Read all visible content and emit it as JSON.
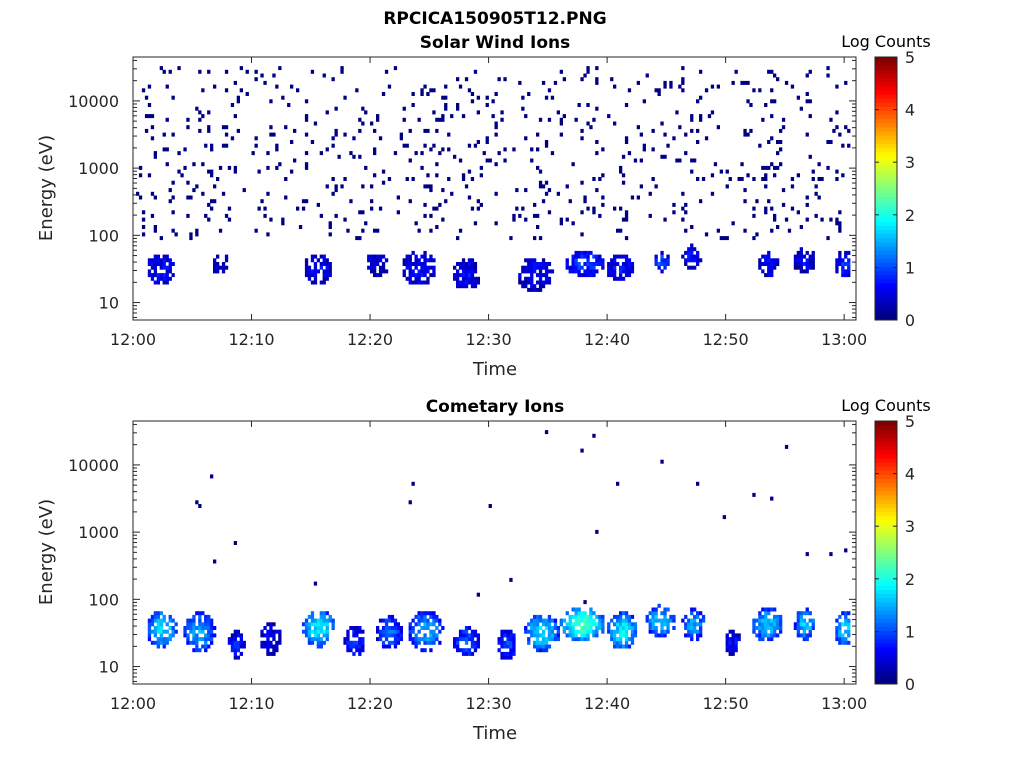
{
  "figure": {
    "title": "RPCICA150905T12.PNG"
  },
  "colormap": {
    "name": "jet",
    "stops": [
      "#00007f",
      "#0000ff",
      "#007fff",
      "#00ffff",
      "#7fff7f",
      "#ffff00",
      "#ff7f00",
      "#ff0000",
      "#7f0000"
    ]
  },
  "chart_data": [
    {
      "type": "heatmap",
      "title": "Solar Wind Ions",
      "xlabel": "Time",
      "ylabel": "Energy (eV)",
      "x_ticks": [
        "12:00",
        "12:10",
        "12:20",
        "12:30",
        "12:40",
        "12:50",
        "13:00"
      ],
      "xlim_minutes": [
        0,
        61
      ],
      "y_scale": "log",
      "ylim": [
        5.5,
        45000
      ],
      "y_ticks": [
        10,
        100,
        1000,
        10000
      ],
      "y_tick_labels": [
        "10",
        "100",
        "1000",
        "10000"
      ],
      "colorbar": {
        "label": "Log Counts",
        "range": [
          0,
          5
        ],
        "ticks": [
          "0",
          "1",
          "2",
          "3",
          "4",
          "5"
        ]
      },
      "bin_minutes": 0.25,
      "bands": [
        {
          "t": 2.2,
          "e": 30,
          "w": 1.2,
          "h": 1.7,
          "lvl": 0.6
        },
        {
          "t": 7.3,
          "e": 35,
          "w": 0.8,
          "h": 1.4,
          "lvl": 0.3
        },
        {
          "t": 15.5,
          "e": 30,
          "w": 1.2,
          "h": 1.7,
          "lvl": 0.6
        },
        {
          "t": 20.5,
          "e": 35,
          "w": 1.0,
          "h": 1.5,
          "lvl": 0.4
        },
        {
          "t": 24.0,
          "e": 30,
          "w": 1.5,
          "h": 1.8,
          "lvl": 0.6
        },
        {
          "t": 28.0,
          "e": 25,
          "w": 1.2,
          "h": 1.7,
          "lvl": 0.6
        },
        {
          "t": 33.8,
          "e": 25,
          "w": 1.5,
          "h": 1.8,
          "lvl": 0.6
        },
        {
          "t": 38.0,
          "e": 35,
          "w": 1.6,
          "h": 1.6,
          "lvl": 0.9
        },
        {
          "t": 41.0,
          "e": 30,
          "w": 1.2,
          "h": 1.6,
          "lvl": 0.7
        },
        {
          "t": 44.5,
          "e": 38,
          "w": 0.6,
          "h": 1.4,
          "lvl": 1.0
        },
        {
          "t": 47.0,
          "e": 45,
          "w": 0.8,
          "h": 1.5,
          "lvl": 0.6
        },
        {
          "t": 53.5,
          "e": 35,
          "w": 0.8,
          "h": 1.5,
          "lvl": 0.6
        },
        {
          "t": 56.5,
          "e": 40,
          "w": 1.0,
          "h": 1.5,
          "lvl": 0.6
        },
        {
          "t": 60.0,
          "e": 35,
          "w": 0.9,
          "h": 1.6,
          "lvl": 0.8
        }
      ],
      "noise_density": 0.28
    },
    {
      "type": "heatmap",
      "title": "Cometary Ions",
      "xlabel": "Time",
      "ylabel": "Energy (eV)",
      "x_ticks": [
        "12:00",
        "12:10",
        "12:20",
        "12:30",
        "12:40",
        "12:50",
        "13:00"
      ],
      "xlim_minutes": [
        0,
        61
      ],
      "y_scale": "log",
      "ylim": [
        5.5,
        45000
      ],
      "y_ticks": [
        10,
        100,
        1000,
        10000
      ],
      "y_tick_labels": [
        "10",
        "100",
        "1000",
        "10000"
      ],
      "colorbar": {
        "label": "Log Counts",
        "range": [
          0,
          5
        ],
        "ticks": [
          "0",
          "1",
          "2",
          "3",
          "4",
          "5"
        ]
      },
      "bin_minutes": 0.25,
      "bands": [
        {
          "t": 2.3,
          "e": 35,
          "w": 1.3,
          "h": 1.9,
          "lvl": 1.7
        },
        {
          "t": 5.5,
          "e": 30,
          "w": 1.3,
          "h": 2.0,
          "lvl": 1.4
        },
        {
          "t": 8.6,
          "e": 20,
          "w": 0.7,
          "h": 1.6,
          "lvl": 0.7
        },
        {
          "t": 11.5,
          "e": 25,
          "w": 0.9,
          "h": 1.8,
          "lvl": 0.5
        },
        {
          "t": 15.6,
          "e": 35,
          "w": 1.4,
          "h": 1.9,
          "lvl": 1.8
        },
        {
          "t": 18.6,
          "e": 22,
          "w": 0.9,
          "h": 1.7,
          "lvl": 0.8
        },
        {
          "t": 21.5,
          "e": 30,
          "w": 1.1,
          "h": 1.8,
          "lvl": 1.1
        },
        {
          "t": 24.6,
          "e": 32,
          "w": 1.5,
          "h": 2.0,
          "lvl": 1.4
        },
        {
          "t": 28.0,
          "e": 22,
          "w": 1.1,
          "h": 1.7,
          "lvl": 1.0
        },
        {
          "t": 31.4,
          "e": 20,
          "w": 0.9,
          "h": 1.7,
          "lvl": 0.9
        },
        {
          "t": 34.4,
          "e": 30,
          "w": 1.5,
          "h": 1.9,
          "lvl": 1.7
        },
        {
          "t": 37.8,
          "e": 40,
          "w": 1.9,
          "h": 1.8,
          "lvl": 2.2
        },
        {
          "t": 41.2,
          "e": 32,
          "w": 1.3,
          "h": 1.9,
          "lvl": 1.8
        },
        {
          "t": 44.4,
          "e": 45,
          "w": 1.3,
          "h": 1.7,
          "lvl": 1.6
        },
        {
          "t": 47.2,
          "e": 40,
          "w": 1.0,
          "h": 1.7,
          "lvl": 1.4
        },
        {
          "t": 50.5,
          "e": 22,
          "w": 0.7,
          "h": 1.6,
          "lvl": 0.6
        },
        {
          "t": 53.4,
          "e": 40,
          "w": 1.3,
          "h": 1.8,
          "lvl": 1.6
        },
        {
          "t": 56.6,
          "e": 40,
          "w": 0.9,
          "h": 1.7,
          "lvl": 1.6
        },
        {
          "t": 60.0,
          "e": 35,
          "w": 1.0,
          "h": 1.8,
          "lvl": 1.7
        }
      ],
      "noise_density": 0.01
    }
  ]
}
